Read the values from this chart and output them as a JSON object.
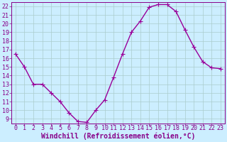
{
  "x": [
    0,
    1,
    2,
    3,
    4,
    5,
    6,
    7,
    8,
    9,
    10,
    11,
    12,
    13,
    14,
    15,
    16,
    17,
    18,
    19,
    20,
    21,
    22,
    23
  ],
  "y": [
    16.5,
    15.0,
    13.0,
    13.0,
    12.0,
    11.0,
    9.7,
    8.7,
    8.6,
    10.0,
    11.2,
    13.8,
    16.5,
    19.0,
    20.3,
    21.9,
    22.2,
    22.2,
    21.4,
    19.3,
    17.3,
    15.6,
    14.9,
    14.8
  ],
  "line_color": "#990099",
  "marker": "+",
  "marker_size": 4,
  "bg_color": "#cceeff",
  "grid_color": "#aacccc",
  "xlabel": "Windchill (Refroidissement éolien,°C)",
  "xlabel_fontsize": 7,
  "ylabel_ticks": [
    9,
    10,
    11,
    12,
    13,
    14,
    15,
    16,
    17,
    18,
    19,
    20,
    21,
    22
  ],
  "ylim": [
    8.5,
    22.5
  ],
  "xlim": [
    -0.5,
    23.5
  ],
  "xticks": [
    0,
    1,
    2,
    3,
    4,
    5,
    6,
    7,
    8,
    9,
    10,
    11,
    12,
    13,
    14,
    15,
    16,
    17,
    18,
    19,
    20,
    21,
    22,
    23
  ],
  "tick_fontsize": 6,
  "line_width": 1.0,
  "spine_color": "#880088",
  "label_color": "#880088"
}
